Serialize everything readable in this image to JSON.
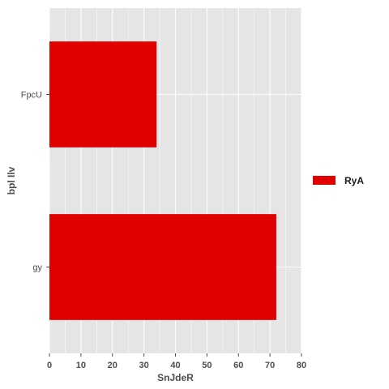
{
  "chart_data": {
    "type": "bar",
    "orientation": "horizontal",
    "categories": [
      "gy",
      "FpcU"
    ],
    "series": [
      {
        "name": "RyA",
        "values": [
          72,
          34
        ],
        "color": "#e00000"
      }
    ],
    "xlabel": "SnJdeR",
    "ylabel": "bpl Ilv",
    "xlim": [
      0,
      80
    ],
    "xticks": [
      0,
      10,
      20,
      30,
      40,
      50,
      60,
      70,
      80
    ],
    "grid": true,
    "panel_background": "#e5e5e5",
    "legend_position": "right"
  }
}
